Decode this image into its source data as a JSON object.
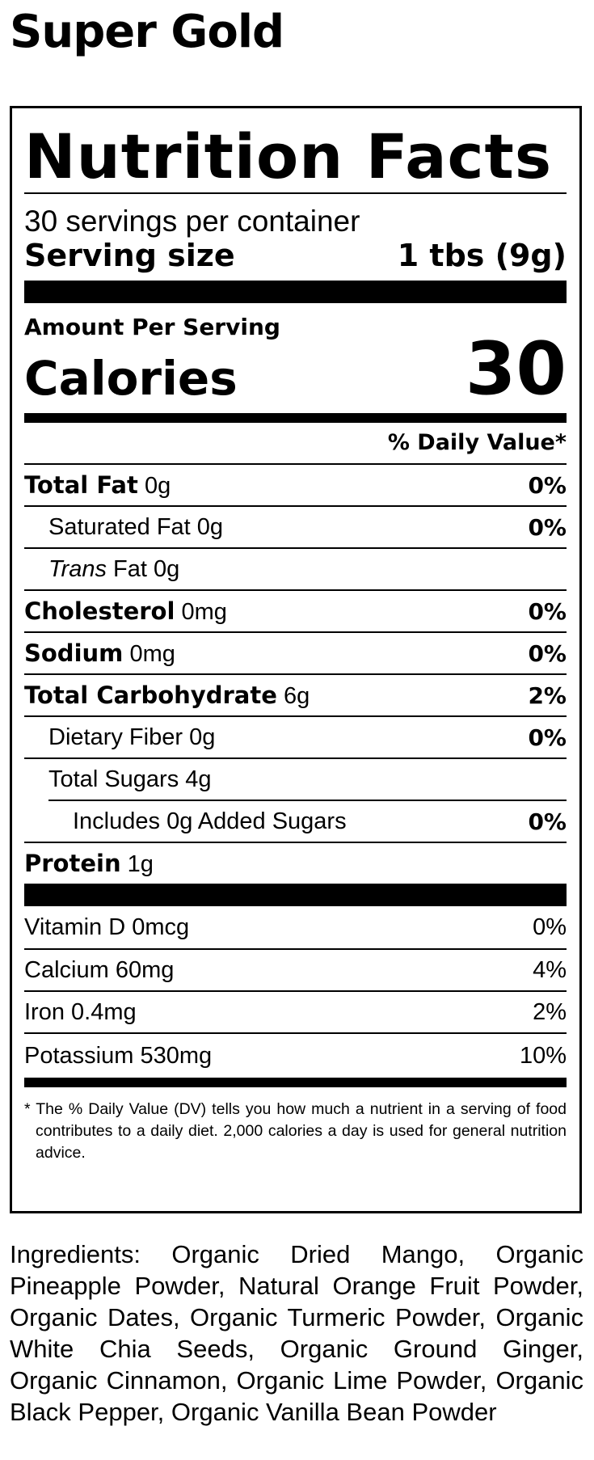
{
  "product": {
    "name": "Super Gold"
  },
  "label": {
    "title": "Nutrition Facts",
    "servings_per_container": "30 servings per container",
    "serving_size_label": "Serving size",
    "serving_size_value": "1 tbs (9g)",
    "amount_per_serving": "Amount Per Serving",
    "calories_label": "Calories",
    "calories_value": "30",
    "dv_header": "% Daily Value*",
    "nutrients": [
      {
        "name": "Total Fat",
        "amount": "0g",
        "dv": "0%"
      },
      {
        "name": "Saturated Fat",
        "amount": "0g",
        "dv": "0%"
      },
      {
        "name_italic": "Trans",
        "name": "Fat",
        "amount": "0g",
        "dv": ""
      },
      {
        "name": "Cholesterol",
        "amount": "0mg",
        "dv": "0%"
      },
      {
        "name": "Sodium",
        "amount": "0mg",
        "dv": "0%"
      },
      {
        "name": "Total Carbohydrate",
        "amount": "6g",
        "dv": "2%"
      },
      {
        "name": "Dietary Fiber",
        "amount": "0g",
        "dv": "0%"
      },
      {
        "name": "Total Sugars",
        "amount": "4g",
        "dv": ""
      },
      {
        "name": "Includes 0g Added Sugars",
        "dv": "0%"
      },
      {
        "name": "Protein",
        "amount": "1g",
        "dv": ""
      }
    ],
    "vitamins": [
      {
        "name": "Vitamin D",
        "amount": "0mcg",
        "dv": "0%"
      },
      {
        "name": "Calcium",
        "amount": "60mg",
        "dv": "4%"
      },
      {
        "name": "Iron",
        "amount": "0.4mg",
        "dv": "2%"
      },
      {
        "name": "Potassium",
        "amount": "530mg",
        "dv": "10%"
      }
    ],
    "footnote": "* The % Daily Value (DV) tells you how much a nutrient in a serving of food contributes to a daily diet. 2,000 calories a day is used for general nutrition advice."
  },
  "ingredients": "Ingredients: Organic Dried Mango, Organic Pineapple Powder, Natural Orange Fruit Powder, Organic Dates, Organic Turmeric Powder, Organic White Chia Seeds, Organic Ground Ginger, Organic Cinnamon, Organic Lime Powder, Organic Black Pepper, Organic Vanilla Bean Powder"
}
